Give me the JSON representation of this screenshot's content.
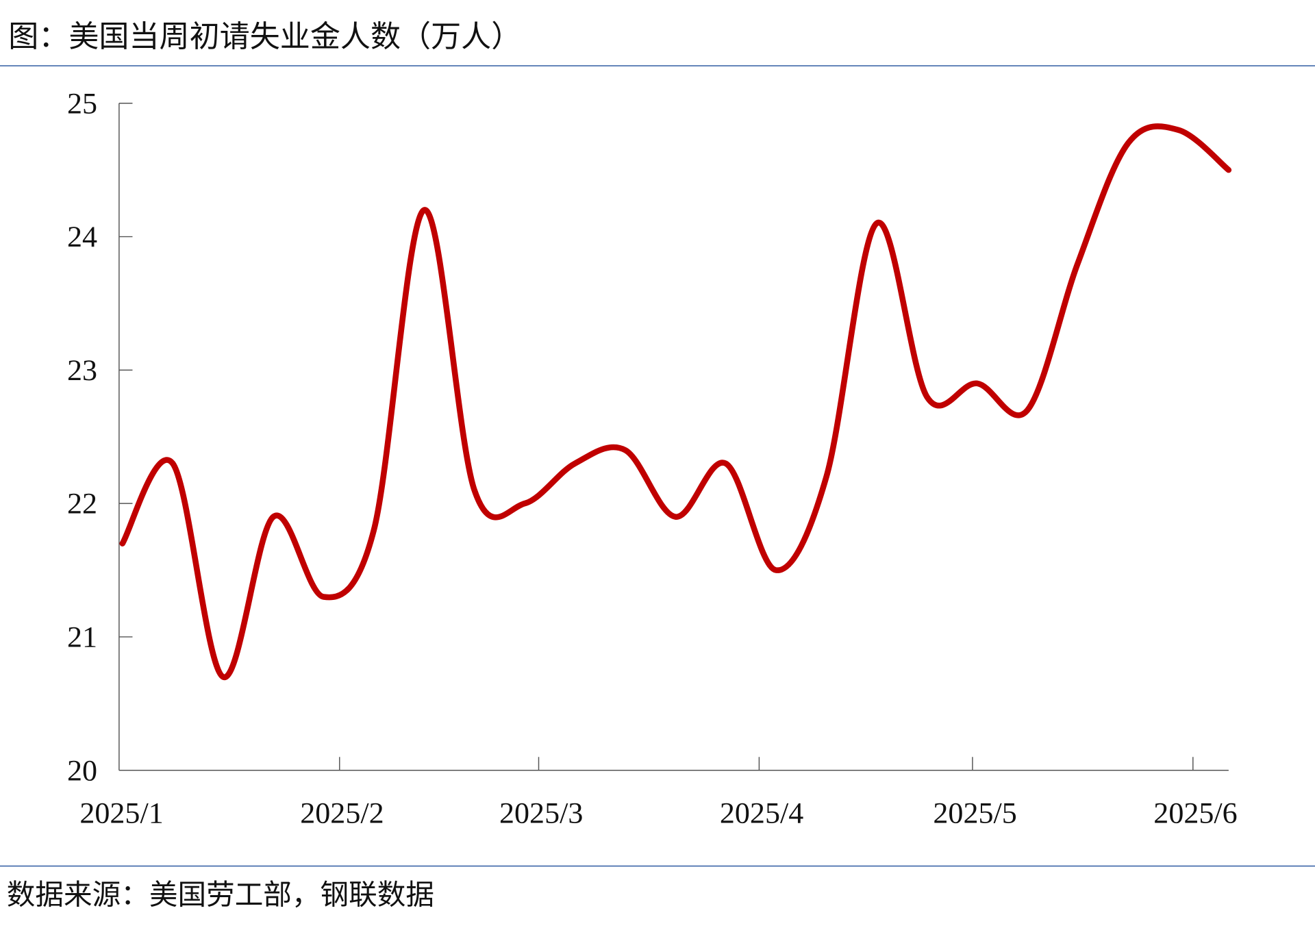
{
  "title": "图：美国当周初请失业金人数（万人）",
  "source": "数据来源：美国劳工部，钢联数据",
  "colors": {
    "line": "#c00000",
    "axis": "#555555",
    "rule": "#1f4e9a"
  },
  "chart_data": {
    "type": "line",
    "title": "图：美国当周初请失业金人数（万人）",
    "xlabel": "",
    "ylabel": "",
    "ylim": [
      20,
      25
    ],
    "yticks": [
      "20",
      "21",
      "22",
      "23",
      "24",
      "25"
    ],
    "xtick_labels": [
      "2025/1",
      "2025/2",
      "2025/3",
      "2025/4",
      "2025/5",
      "2025/6"
    ],
    "xtick_dates": [
      "2025-01-01",
      "2025-02-01",
      "2025-03-01",
      "2025-04-01",
      "2025-05-01",
      "2025-06-01"
    ],
    "grid": false,
    "smooth": true,
    "x": [
      "2025-01-01",
      "2025-01-08",
      "2025-01-15",
      "2025-01-22",
      "2025-01-29",
      "2025-02-05",
      "2025-02-12",
      "2025-02-19",
      "2025-02-26",
      "2025-03-05",
      "2025-03-12",
      "2025-03-19",
      "2025-03-26",
      "2025-04-02",
      "2025-04-09",
      "2025-04-16",
      "2025-04-23",
      "2025-04-30",
      "2025-05-07",
      "2025-05-14",
      "2025-05-21",
      "2025-05-28",
      "2025-06-04"
    ],
    "series": [
      {
        "values": [
          21.7,
          22.3,
          20.7,
          21.9,
          21.3,
          21.8,
          24.2,
          22.1,
          22.0,
          22.3,
          22.4,
          21.9,
          22.3,
          21.5,
          22.2,
          24.1,
          22.8,
          22.9,
          22.7,
          23.8,
          24.7,
          24.8,
          24.5
        ]
      }
    ]
  }
}
